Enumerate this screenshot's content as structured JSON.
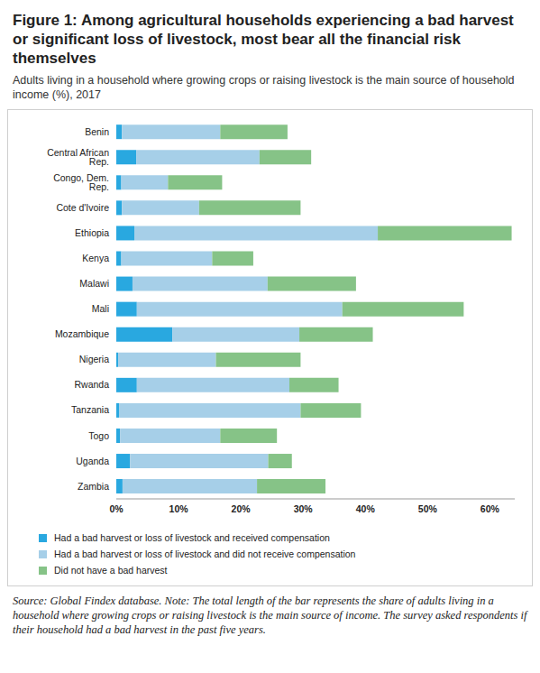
{
  "chart_data": {
    "type": "bar",
    "orientation": "horizontal",
    "stacked": true,
    "grid": false,
    "title": "Figure 1: Among agricultural households experiencing a bad harvest or significant loss of livestock, most bear all the financial risk themselves",
    "subtitle": "Adults living in a household where growing crops or raising livestock is the main source of household income (%), 2017",
    "note": "Source: Global Findex database. Note: The total length of the bar represents the share of adults living in a household where growing crops or raising livestock is the main source of income. The survey asked respondents if their household had a bad harvest in the past five years.",
    "categories": [
      "Benin",
      "Central African Rep.",
      "Congo, Dem. Rep.",
      "Cote d'Ivoire",
      "Ethiopia",
      "Kenya",
      "Malawi",
      "Mali",
      "Mozambique",
      "Nigeria",
      "Rwanda",
      "Tanzania",
      "Togo",
      "Uganda",
      "Zambia"
    ],
    "series": [
      {
        "name": "Had a bad harvest or loss of livestock and received compensation",
        "color": "#29a8e0",
        "values": [
          0.9,
          3.2,
          0.8,
          0.9,
          2.9,
          0.8,
          2.6,
          3.3,
          9.0,
          0.3,
          3.3,
          0.5,
          0.6,
          2.2,
          1.0
        ]
      },
      {
        "name": "Had a bad harvest or loss of livestock and did not receive compensation",
        "color": "#a6cfe8",
        "values": [
          15.8,
          19.8,
          7.5,
          12.4,
          39.1,
          14.6,
          21.7,
          33.0,
          20.4,
          15.7,
          24.5,
          29.1,
          16.1,
          22.2,
          21.6
        ]
      },
      {
        "name": "Did not have a bad harvest",
        "color": "#86c387",
        "values": [
          10.8,
          8.3,
          8.7,
          16.3,
          21.5,
          6.6,
          14.2,
          19.5,
          11.8,
          13.6,
          7.9,
          9.7,
          9.1,
          3.8,
          11.0
        ]
      }
    ],
    "xlim": [
      0,
      64
    ],
    "xticks": [
      {
        "value": 0,
        "label": "0%"
      },
      {
        "value": 10,
        "label": "10%"
      },
      {
        "value": 20,
        "label": "20%"
      },
      {
        "value": 30,
        "label": "30%"
      },
      {
        "value": 40,
        "label": "40%"
      },
      {
        "value": 50,
        "label": "50%"
      },
      {
        "value": 60,
        "label": "60%"
      }
    ]
  }
}
